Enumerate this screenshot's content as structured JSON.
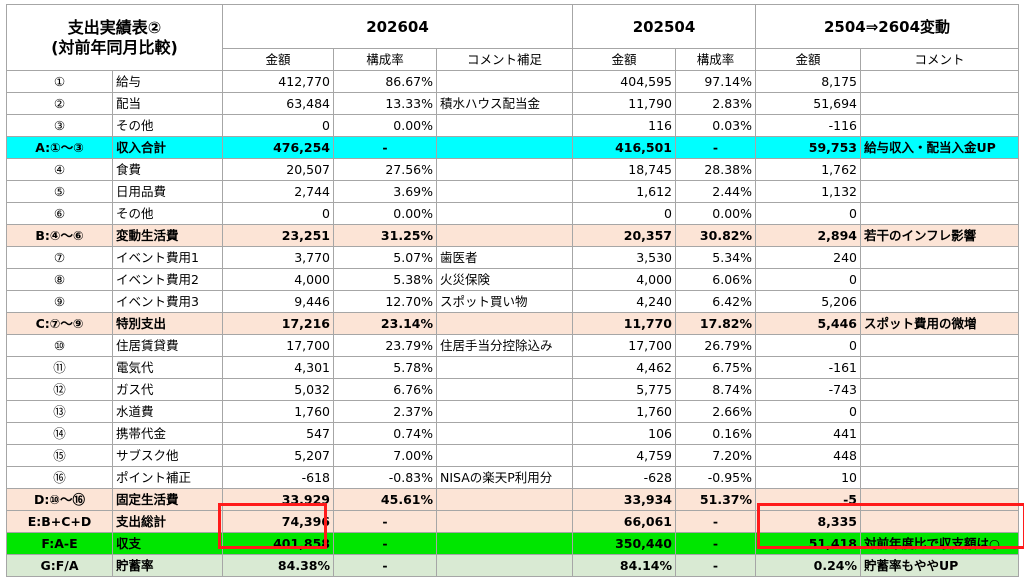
{
  "title_line1": "支出実績表②",
  "title_line2": "(対前年同月比較)",
  "periods": {
    "cur": "202604",
    "prev": "202504",
    "diff": "2504⇒2604変動"
  },
  "subheaders": {
    "cur_amount": "金額",
    "cur_ratio": "構成率",
    "cur_comment": "コメント補足",
    "prev_amount": "金額",
    "prev_ratio": "構成率",
    "diff_amount": "金額",
    "diff_comment": "コメント"
  },
  "rows": [
    {
      "no": "①",
      "name": "給与",
      "a": "412,770",
      "ar": "86.67%",
      "ac": "",
      "p": "404,595",
      "pr": "97.14%",
      "d": "8,175",
      "dc": ""
    },
    {
      "no": "②",
      "name": "配当",
      "a": "63,484",
      "ar": "13.33%",
      "ac": "積水ハウス配当金",
      "p": "11,790",
      "pr": "2.83%",
      "d": "51,694",
      "dc": ""
    },
    {
      "no": "③",
      "name": "その他",
      "a": "0",
      "ar": "0.00%",
      "ac": "",
      "p": "116",
      "pr": "0.03%",
      "d": "-116",
      "dc": ""
    },
    {
      "no": "A:①～③",
      "name": "収入合計",
      "a": "476,254",
      "ar": "-",
      "ac": "",
      "p": "416,501",
      "pr": "-",
      "d": "59,753",
      "dc": "給与収入・配当入金UP"
    },
    {
      "no": "④",
      "name": "食費",
      "a": "20,507",
      "ar": "27.56%",
      "ac": "",
      "p": "18,745",
      "pr": "28.38%",
      "d": "1,762",
      "dc": ""
    },
    {
      "no": "⑤",
      "name": "日用品費",
      "a": "2,744",
      "ar": "3.69%",
      "ac": "",
      "p": "1,612",
      "pr": "2.44%",
      "d": "1,132",
      "dc": ""
    },
    {
      "no": "⑥",
      "name": "その他",
      "a": "0",
      "ar": "0.00%",
      "ac": "",
      "p": "0",
      "pr": "0.00%",
      "d": "0",
      "dc": ""
    },
    {
      "no": "B:④～⑥",
      "name": "変動生活費",
      "a": "23,251",
      "ar": "31.25%",
      "ac": "",
      "p": "20,357",
      "pr": "30.82%",
      "d": "2,894",
      "dc": "若干のインフレ影響"
    },
    {
      "no": "⑦",
      "name": "イベント費用1",
      "a": "3,770",
      "ar": "5.07%",
      "ac": "歯医者",
      "p": "3,530",
      "pr": "5.34%",
      "d": "240",
      "dc": ""
    },
    {
      "no": "⑧",
      "name": "イベント費用2",
      "a": "4,000",
      "ar": "5.38%",
      "ac": "火災保険",
      "p": "4,000",
      "pr": "6.06%",
      "d": "0",
      "dc": ""
    },
    {
      "no": "⑨",
      "name": "イベント費用3",
      "a": "9,446",
      "ar": "12.70%",
      "ac": "スポット買い物",
      "p": "4,240",
      "pr": "6.42%",
      "d": "5,206",
      "dc": ""
    },
    {
      "no": "C:⑦～⑨",
      "name": "特別支出",
      "a": "17,216",
      "ar": "23.14%",
      "ac": "",
      "p": "11,770",
      "pr": "17.82%",
      "d": "5,446",
      "dc": "スポット費用の微増"
    },
    {
      "no": "⑩",
      "name": "住居賃貸費",
      "a": "17,700",
      "ar": "23.79%",
      "ac": "住居手当分控除込み",
      "p": "17,700",
      "pr": "26.79%",
      "d": "0",
      "dc": ""
    },
    {
      "no": "⑪",
      "name": "電気代",
      "a": "4,301",
      "ar": "5.78%",
      "ac": "",
      "p": "4,462",
      "pr": "6.75%",
      "d": "-161",
      "dc": ""
    },
    {
      "no": "⑫",
      "name": "ガス代",
      "a": "5,032",
      "ar": "6.76%",
      "ac": "",
      "p": "5,775",
      "pr": "8.74%",
      "d": "-743",
      "dc": ""
    },
    {
      "no": "⑬",
      "name": "水道費",
      "a": "1,760",
      "ar": "2.37%",
      "ac": "",
      "p": "1,760",
      "pr": "2.66%",
      "d": "0",
      "dc": ""
    },
    {
      "no": "⑭",
      "name": "携帯代金",
      "a": "547",
      "ar": "0.74%",
      "ac": "",
      "p": "106",
      "pr": "0.16%",
      "d": "441",
      "dc": ""
    },
    {
      "no": "⑮",
      "name": "サブスク他",
      "a": "5,207",
      "ar": "7.00%",
      "ac": "",
      "p": "4,759",
      "pr": "7.20%",
      "d": "448",
      "dc": ""
    },
    {
      "no": "⑯",
      "name": "ポイント補正",
      "a": "-618",
      "ar": "-0.83%",
      "ac": "NISAの楽天P利用分",
      "p": "-628",
      "pr": "-0.95%",
      "d": "10",
      "dc": ""
    },
    {
      "no": "D:⑩～⑯",
      "name": "固定生活費",
      "a": "33,929",
      "ar": "45.61%",
      "ac": "",
      "p": "33,934",
      "pr": "51.37%",
      "d": "-5",
      "dc": ""
    },
    {
      "no": "E:B+C+D",
      "name": "支出総計",
      "a": "74,396",
      "ar": "-",
      "ac": "",
      "p": "66,061",
      "pr": "-",
      "d": "8,335",
      "dc": ""
    },
    {
      "no": "F:A-E",
      "name": "収支",
      "a": "401,858",
      "ar": "-",
      "ac": "",
      "p": "350,440",
      "pr": "-",
      "d": "51,418",
      "dc": "対前年度比で収支額は○"
    },
    {
      "no": "G:F/A",
      "name": "貯蓄率",
      "a": "84.38%",
      "ar": "-",
      "ac": "",
      "p": "84.14%",
      "pr": "-",
      "d": "0.24%",
      "dc": "貯蓄率もややUP"
    }
  ],
  "colors": {
    "income_total_row": "#00ffff",
    "subtotal_row": "#fce4d6",
    "balance_row": "#00e600",
    "savings_row": "#d9ead3",
    "highlight_box": "#ff1a1a"
  }
}
